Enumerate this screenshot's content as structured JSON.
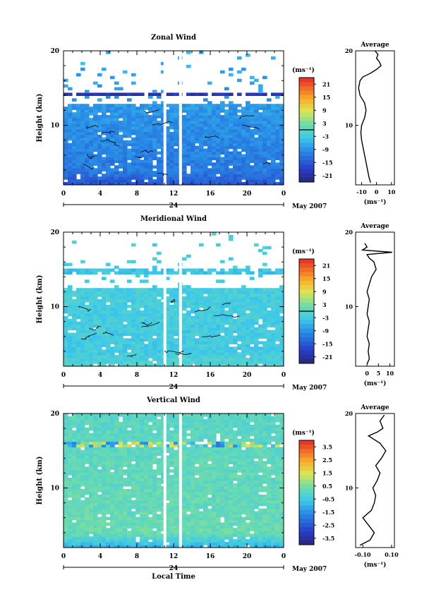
{
  "chart_data": [
    {
      "type": "heatmap",
      "title": "Zonal Wind",
      "xlabel": "",
      "ylabel": "Height (km)",
      "xlim": [
        0,
        24
      ],
      "ylim": [
        2,
        20
      ],
      "x_ticks": [
        "0",
        "4",
        "8",
        "12",
        "16",
        "20",
        "0"
      ],
      "y_ticks": [
        "10",
        "20"
      ],
      "date_marker": "24",
      "date_label": "May 2007",
      "colorbar": {
        "unit": "(ms⁻¹)",
        "ticks": [
          "21",
          "15",
          "9",
          "3",
          "-3",
          "-9",
          "-15",
          "-21"
        ],
        "range": [
          -24,
          24
        ],
        "contour_level": 0
      },
      "profile": {
        "title": "Average",
        "xlabel": "(ms⁻¹)",
        "x_ticks": [
          "-10",
          "0",
          "10"
        ],
        "xlim": [
          -14,
          12
        ],
        "y_ticks": [
          "10",
          "20"
        ],
        "ylim": [
          2,
          20
        ],
        "points": [
          [
            -4,
            2.3
          ],
          [
            -5,
            3
          ],
          [
            -6,
            4
          ],
          [
            -7,
            5
          ],
          [
            -8,
            6
          ],
          [
            -9,
            7
          ],
          [
            -10,
            8
          ],
          [
            -10.5,
            9
          ],
          [
            -10,
            10
          ],
          [
            -8,
            11
          ],
          [
            -7,
            12
          ],
          [
            -8,
            13
          ],
          [
            -11,
            14
          ],
          [
            -12,
            15
          ],
          [
            -11,
            16
          ],
          [
            -9,
            16.5
          ],
          [
            -4,
            17
          ],
          [
            0,
            17.5
          ],
          [
            3,
            18
          ],
          [
            2,
            18.5
          ],
          [
            0,
            19
          ],
          [
            1,
            19.5
          ],
          [
            -1,
            20
          ]
        ]
      },
      "field": {
        "base": -12,
        "base_top": 2,
        "surface_top": -16,
        "upper": -6,
        "gap_above_km": 13,
        "band_km": 14.2,
        "band_value": -20,
        "top_km": 17.5
      }
    },
    {
      "type": "heatmap",
      "title": "Meridional Wind",
      "xlabel": "",
      "ylabel": "Height (km)",
      "xlim": [
        0,
        24
      ],
      "ylim": [
        2,
        20
      ],
      "x_ticks": [
        "0",
        "4",
        "8",
        "12",
        "16",
        "20",
        "0"
      ],
      "y_ticks": [
        "10",
        "20"
      ],
      "date_marker": "24",
      "date_label": "May 2007",
      "colorbar": {
        "unit": "(ms⁻¹)",
        "ticks": [
          "21",
          "15",
          "9",
          "3",
          "-3",
          "-9",
          "-15",
          "-21"
        ],
        "range": [
          -24,
          24
        ],
        "contour_level": 0
      },
      "profile": {
        "title": "Average",
        "xlabel": "(ms⁻¹)",
        "x_ticks": [
          "0",
          "5",
          "10"
        ],
        "xlim": [
          -5,
          12
        ],
        "y_ticks": [
          "10",
          "20"
        ],
        "ylim": [
          2,
          20
        ],
        "points": [
          [
            0,
            2.3
          ],
          [
            1,
            3
          ],
          [
            0.5,
            4
          ],
          [
            1,
            5
          ],
          [
            0,
            6
          ],
          [
            0.5,
            7
          ],
          [
            1,
            8
          ],
          [
            0,
            9
          ],
          [
            0.5,
            10
          ],
          [
            1,
            11
          ],
          [
            0,
            12
          ],
          [
            1,
            13
          ],
          [
            2,
            14
          ],
          [
            4,
            15
          ],
          [
            3,
            16
          ],
          [
            1,
            16.5
          ],
          [
            0,
            17
          ],
          [
            11,
            17.3
          ],
          [
            -2,
            17.6
          ],
          [
            0,
            18
          ],
          [
            -1,
            18.5
          ]
        ]
      },
      "field": {
        "base": -3,
        "base_top": 2,
        "surface_top": -1,
        "upper": -2,
        "gap_above_km": 12.5,
        "band_km": 14.8,
        "band_value": -4,
        "top_km": 16.5
      }
    },
    {
      "type": "heatmap",
      "title": "Vertical Wind",
      "xlabel": "Local Time",
      "ylabel": "Height (km)",
      "xlim": [
        0,
        24
      ],
      "ylim": [
        2,
        20
      ],
      "x_ticks": [
        "0",
        "4",
        "8",
        "12",
        "16",
        "20",
        "0"
      ],
      "y_ticks": [
        "10",
        "20"
      ],
      "date_marker": "24",
      "date_label": "May 2007",
      "colorbar": {
        "unit": "(ms⁻¹)",
        "ticks": [
          "3.5",
          "2.5",
          "1.5",
          "0.5",
          "-0.5",
          "-1.5",
          "-2.5",
          "-3.5"
        ],
        "range": [
          -4,
          4
        ],
        "contour_level": null
      },
      "profile": {
        "title": "Average",
        "xlabel": "(ms⁻¹)",
        "x_ticks": [
          "-0.10",
          "0.10"
        ],
        "xlim": [
          -0.15,
          0.12
        ],
        "y_ticks": [
          "10",
          "20"
        ],
        "ylim": [
          2,
          20
        ],
        "points": [
          [
            -0.12,
            2.3
          ],
          [
            -0.05,
            3
          ],
          [
            -0.02,
            4
          ],
          [
            -0.06,
            5
          ],
          [
            -0.1,
            6
          ],
          [
            -0.04,
            7
          ],
          [
            -0.02,
            8
          ],
          [
            -0.01,
            9
          ],
          [
            -0.03,
            10
          ],
          [
            0.0,
            11
          ],
          [
            0.02,
            12
          ],
          [
            -0.01,
            13
          ],
          [
            0.03,
            14
          ],
          [
            0.06,
            15
          ],
          [
            0.02,
            16
          ],
          [
            -0.06,
            17
          ],
          [
            0.0,
            17.5
          ],
          [
            0.04,
            18
          ],
          [
            0.02,
            19
          ],
          [
            0.05,
            19.8
          ]
        ]
      },
      "field": {
        "base": 0.3,
        "base_top": 0.3,
        "surface_top": -1,
        "upper": 0.0,
        "gap_above_km": 30,
        "band_km": 16,
        "band_value": 0.0,
        "top_km": 20
      }
    }
  ]
}
